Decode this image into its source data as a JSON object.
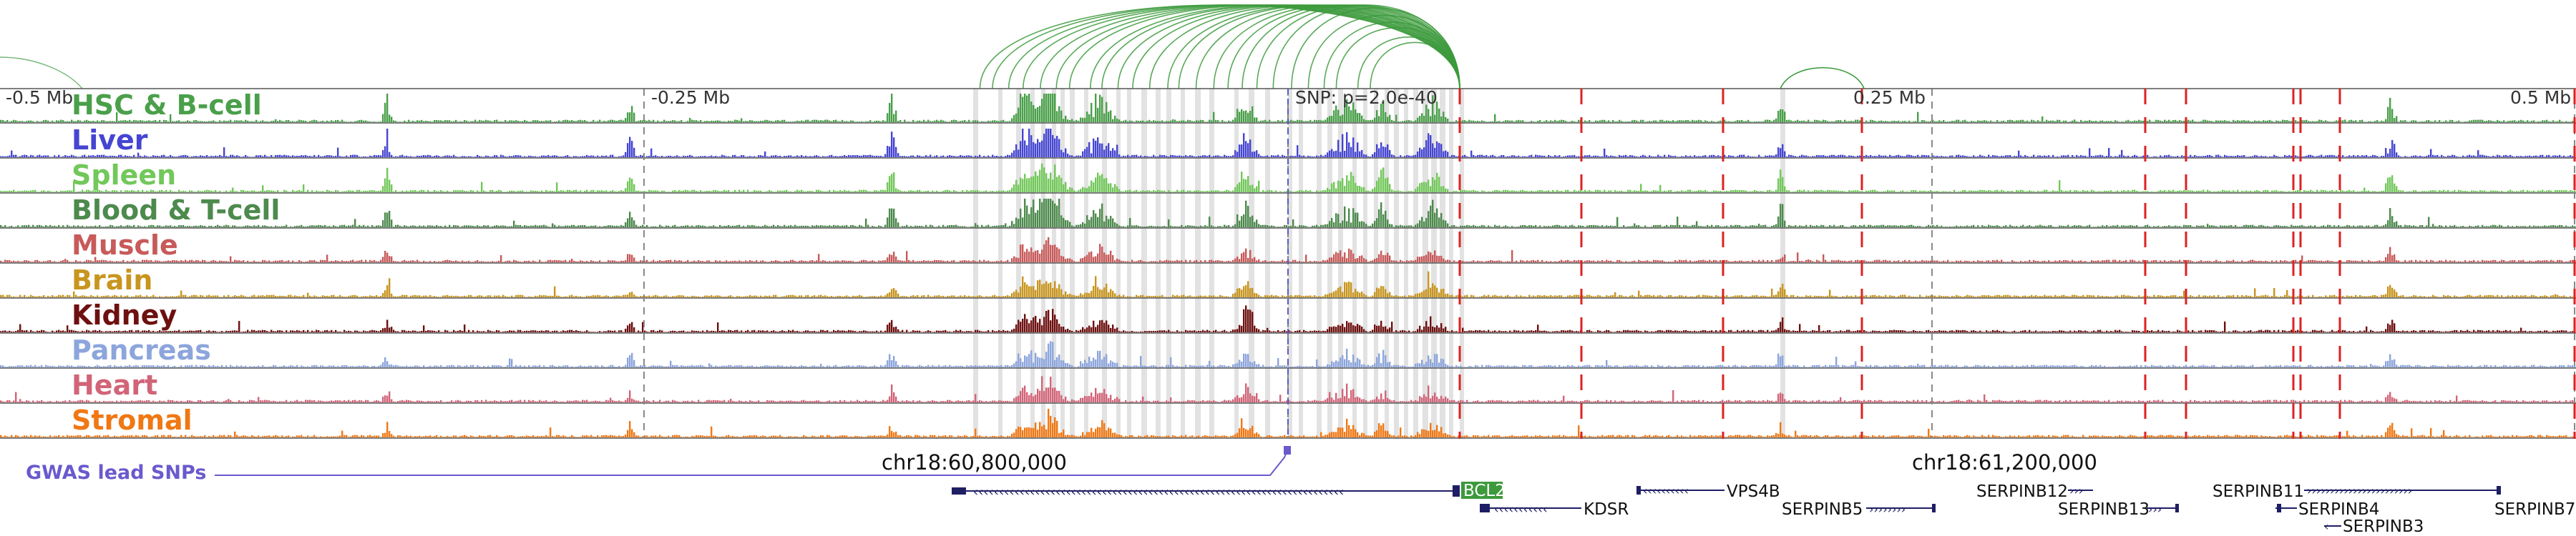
{
  "scale": {
    "left_label": "-0.5 Mb",
    "mid_left_label": "-0.25 Mb",
    "snp_label": "SNP: p=2.0e-40",
    "mid_right_label": "0.25 Mb",
    "right_label": "0.5 Mb"
  },
  "tracks": [
    {
      "name": "HSC & B-cell",
      "color": "#4aa04a"
    },
    {
      "name": "Liver",
      "color": "#4545d2"
    },
    {
      "name": "Spleen",
      "color": "#72c85a"
    },
    {
      "name": "Blood & T-cell",
      "color": "#4d8a4d"
    },
    {
      "name": "Muscle",
      "color": "#c85a5a"
    },
    {
      "name": "Brain",
      "color": "#c8951e"
    },
    {
      "name": "Kidney",
      "color": "#6e1010"
    },
    {
      "name": "Pancreas",
      "color": "#8ca5dc"
    },
    {
      "name": "Heart",
      "color": "#d26478"
    },
    {
      "name": "Stromal",
      "color": "#f07814"
    }
  ],
  "coordinates": {
    "left": "chr18:60,800,000",
    "right": "chr18:61,200,000"
  },
  "gwas_label": "GWAS lead SNPs",
  "genes": {
    "bcl2": "BCL2",
    "kdsr": "KDSR",
    "vps4b": "VPS4B",
    "serpinb5": "SERPINB5",
    "serpinb12": "SERPINB12",
    "serpinb13": "SERPINB13",
    "serpinb11": "SERPINB11",
    "serpinb4": "SERPINB4",
    "serpinb3": "SERPINB3",
    "serpinb7": "SERPINB7"
  },
  "colors": {
    "arc": "#3c9a3c",
    "snp_line": "#dd2222",
    "gwas": "#6a5acd",
    "gene": "#1e1e64",
    "bcl2_box": "#3c9a3c"
  }
}
